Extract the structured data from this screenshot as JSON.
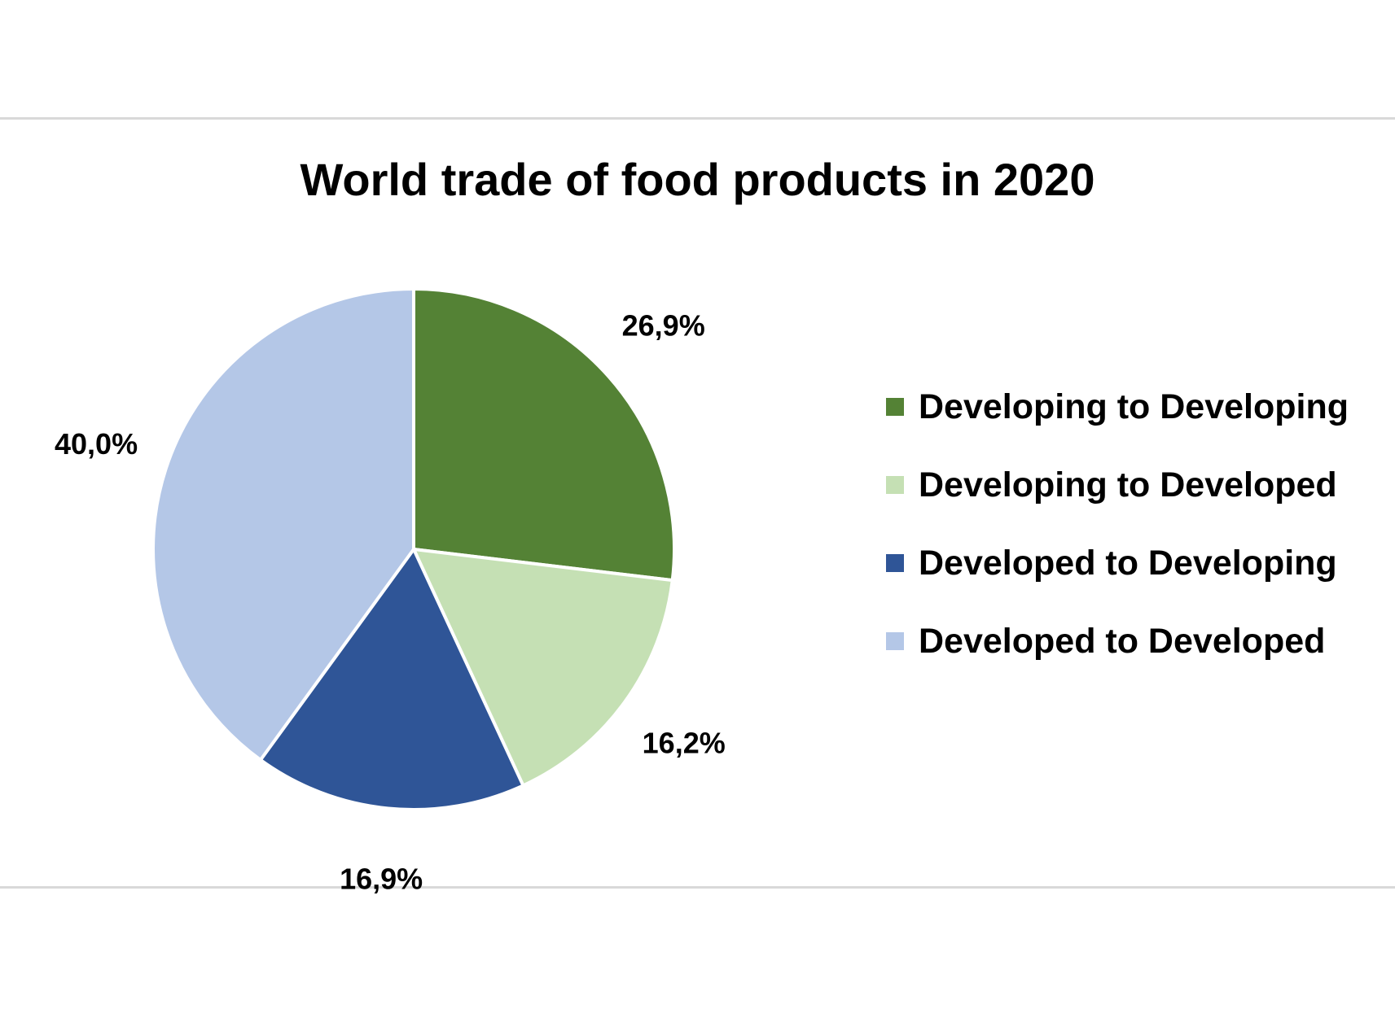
{
  "chart_data": {
    "type": "pie",
    "title": "World trade of food products in 2020",
    "legend_position": "right",
    "slices": [
      {
        "label": "Developing to Developing",
        "value": 26.9,
        "display": "26,9%",
        "color": "#548235"
      },
      {
        "label": "Developing to Developed",
        "value": 16.2,
        "display": "16,2%",
        "color": "#c5e0b4"
      },
      {
        "label": "Developed to Developing",
        "value": 16.9,
        "display": "16,9%",
        "color": "#2f5597"
      },
      {
        "label": "Developed to Developed",
        "value": 40.0,
        "display": "40,0%",
        "color": "#b4c7e7"
      }
    ]
  }
}
